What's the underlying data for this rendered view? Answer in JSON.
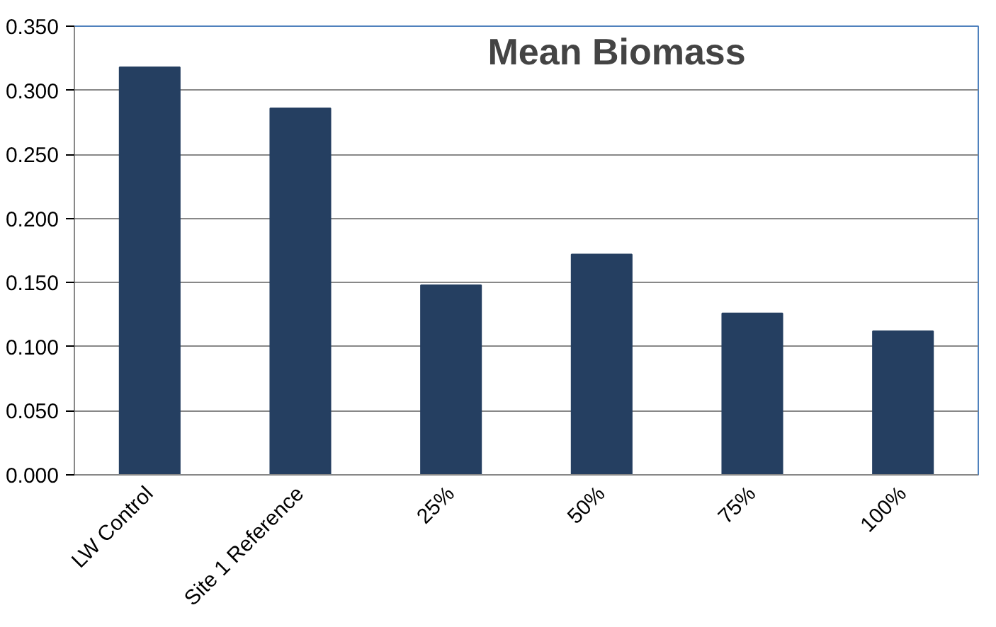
{
  "chart_data": {
    "type": "bar",
    "title": "Mean Biomass",
    "categories": [
      "LW Control",
      "Site 1 Reference",
      "25%",
      "50%",
      "75%",
      "100%"
    ],
    "values": [
      0.318,
      0.286,
      0.148,
      0.172,
      0.126,
      0.112
    ],
    "color": "#253f61",
    "ylim": [
      0,
      0.35
    ],
    "yticks": [
      {
        "value": 0,
        "label": "0.000"
      },
      {
        "value": 0.05,
        "label": "0.050"
      },
      {
        "value": 0.1,
        "label": "0.100"
      },
      {
        "value": 0.15,
        "label": "0.150"
      },
      {
        "value": 0.2,
        "label": "0.200"
      },
      {
        "value": 0.25,
        "label": "0.250"
      },
      {
        "value": 0.3,
        "label": "0.300"
      },
      {
        "value": 0.35,
        "label": "0.350"
      }
    ],
    "grid": "y"
  }
}
